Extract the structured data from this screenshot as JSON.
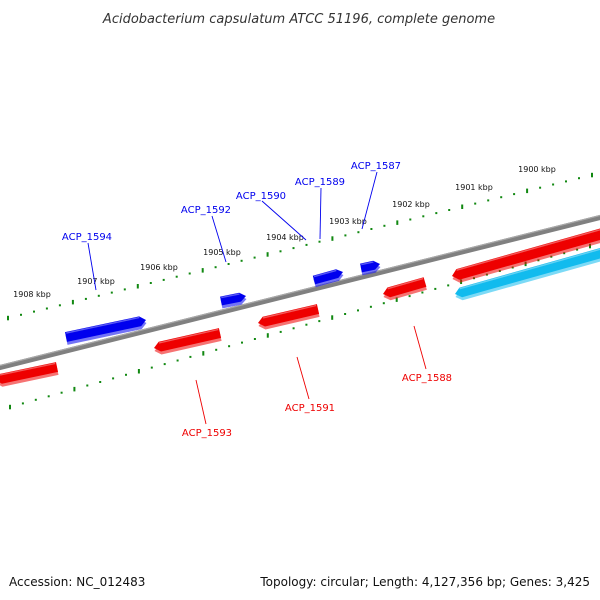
{
  "title": "Acidobacterium capsulatum ATCC 51196, complete genome",
  "footer": {
    "accession": "Accession: NC_012483",
    "summary": "Topology: circular; Length: 4,127,356 bp; Genes: 3,425"
  },
  "colors": {
    "forward_gene": "#0000ee",
    "reverse_gene": "#ee0000",
    "highlight_gene": "#11bbee",
    "backbone": "#808080",
    "scale_ticks": "#118811"
  },
  "scale_ticks": [
    {
      "label": "1908 kbp"
    },
    {
      "label": "1907 kbp"
    },
    {
      "label": "1906 kbp"
    },
    {
      "label": "1905 kbp"
    },
    {
      "label": "1904 kbp"
    },
    {
      "label": "1903 kbp"
    },
    {
      "label": "1902 kbp"
    },
    {
      "label": "1901 kbp"
    },
    {
      "label": "1900 kbp"
    }
  ],
  "forward_genes": [
    {
      "name": "ACP_1594",
      "labeled": true
    },
    {
      "name": "ACP_1592",
      "labeled": true
    },
    {
      "name": "ACP_1590",
      "labeled": true
    },
    {
      "name": "ACP_1589",
      "labeled": true
    },
    {
      "name": "ACP_1587",
      "labeled": true
    }
  ],
  "reverse_genes": [
    {
      "name": "",
      "labeled": false
    },
    {
      "name": "ACP_1593",
      "labeled": true
    },
    {
      "name": "ACP_1591",
      "labeled": true
    },
    {
      "name": "ACP_1588",
      "labeled": true
    },
    {
      "name": "",
      "labeled": false
    }
  ],
  "highlight_genes": [
    {
      "name": "",
      "labeled": false
    }
  ]
}
